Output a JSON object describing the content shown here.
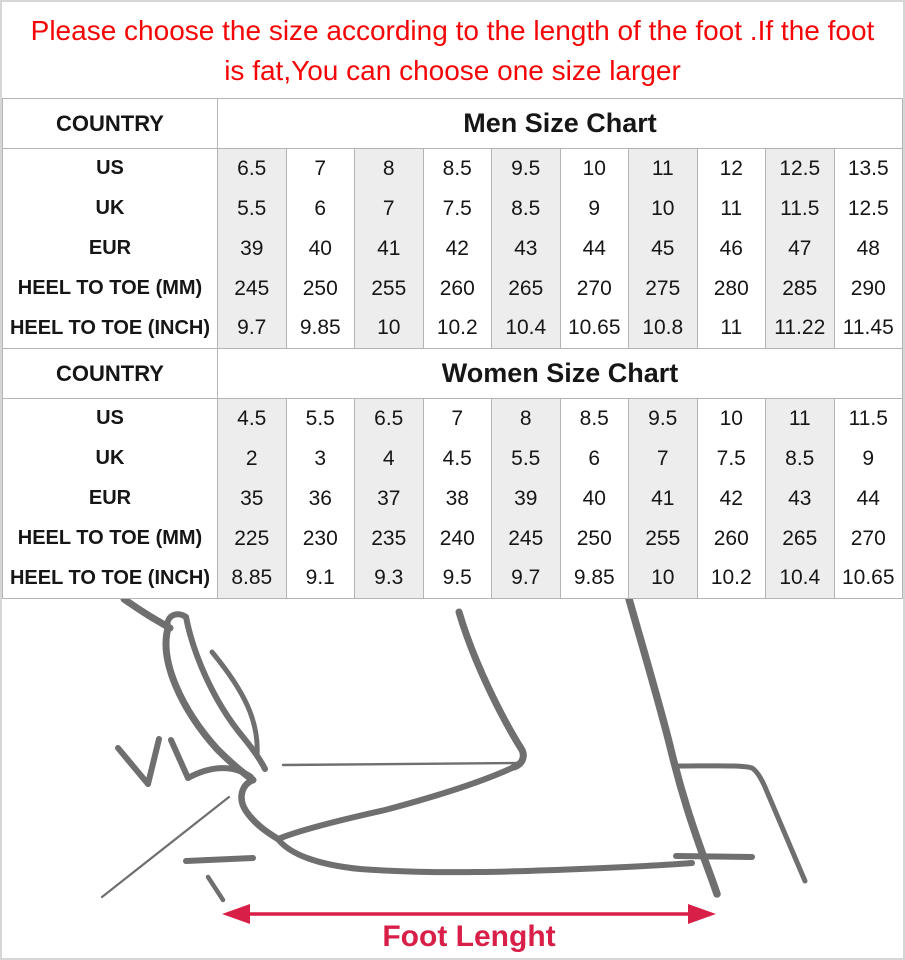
{
  "notice": {
    "line1": "Please choose the size according to the length of the foot .If the foot",
    "line2": "is fat,You can choose one size larger"
  },
  "chart_data": [
    {
      "type": "table",
      "title": "Men Size Chart",
      "corner_label": "COUNTRY",
      "rows": [
        {
          "label": "US",
          "values": [
            "6.5",
            "7",
            "8",
            "8.5",
            "9.5",
            "10",
            "11",
            "12",
            "12.5",
            "13.5"
          ]
        },
        {
          "label": "UK",
          "values": [
            "5.5",
            "6",
            "7",
            "7.5",
            "8.5",
            "9",
            "10",
            "11",
            "11.5",
            "12.5"
          ]
        },
        {
          "label": "EUR",
          "values": [
            "39",
            "40",
            "41",
            "42",
            "43",
            "44",
            "45",
            "46",
            "47",
            "48"
          ]
        },
        {
          "label": "HEEL TO TOE (MM)",
          "values": [
            "245",
            "250",
            "255",
            "260",
            "265",
            "270",
            "275",
            "280",
            "285",
            "290"
          ]
        },
        {
          "label": "HEEL TO TOE (INCH)",
          "values": [
            "9.7",
            "9.85",
            "10",
            "10.2",
            "10.4",
            "10.65",
            "10.8",
            "11",
            "11.22",
            "11.45"
          ]
        }
      ]
    },
    {
      "type": "table",
      "title": "Women Size Chart",
      "corner_label": "COUNTRY",
      "rows": [
        {
          "label": "US",
          "values": [
            "4.5",
            "5.5",
            "6.5",
            "7",
            "8",
            "8.5",
            "9.5",
            "10",
            "11",
            "11.5"
          ]
        },
        {
          "label": "UK",
          "values": [
            "2",
            "3",
            "4",
            "4.5",
            "5.5",
            "6",
            "7",
            "7.5",
            "8.5",
            "9"
          ]
        },
        {
          "label": "EUR",
          "values": [
            "35",
            "36",
            "37",
            "38",
            "39",
            "40",
            "41",
            "42",
            "43",
            "44"
          ]
        },
        {
          "label": "HEEL TO TOE (MM)",
          "values": [
            "225",
            "230",
            "235",
            "240",
            "245",
            "250",
            "255",
            "260",
            "265",
            "270"
          ]
        },
        {
          "label": "HEEL TO TOE (INCH)",
          "values": [
            "8.85",
            "9.1",
            "9.3",
            "9.5",
            "9.7",
            "9.85",
            "10",
            "10.2",
            "10.4",
            "10.65"
          ]
        }
      ]
    }
  ],
  "figure": {
    "caption": "Foot Lenght"
  },
  "colors": {
    "notice_red": "#f50505",
    "arrow_red": "#d81f48",
    "cell_shade": "#ededed",
    "grid_line": "#b4b4b4",
    "sketch_gray": "#6f6f6f"
  }
}
